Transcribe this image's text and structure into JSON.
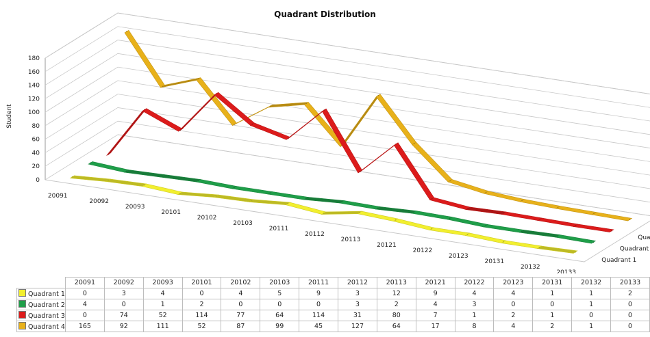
{
  "chart_data": {
    "type": "line",
    "view": "3d-ribbon",
    "title": "Quadrant Distribution",
    "ylabel": "Student",
    "ylim": [
      0,
      180
    ],
    "yticks": [
      "0",
      "20",
      "40",
      "60",
      "80",
      "100",
      "120",
      "140",
      "160",
      "180"
    ],
    "categories": [
      "20091",
      "20092",
      "20093",
      "20101",
      "20102",
      "20103",
      "20111",
      "20112",
      "20113",
      "20121",
      "20122",
      "20123",
      "20131",
      "20132",
      "20133"
    ],
    "series": [
      {
        "name": "Quadrant 1",
        "color": "#f2ef2e",
        "values": [
          0,
          3,
          4,
          0,
          4,
          5,
          9,
          3,
          12,
          9,
          4,
          4,
          1,
          1,
          2
        ]
      },
      {
        "name": "Quadrant 2",
        "color": "#1f9e49",
        "values": [
          4,
          0,
          1,
          2,
          0,
          0,
          0,
          3,
          2,
          4,
          3,
          0,
          0,
          1,
          0
        ]
      },
      {
        "name": "Quadrant 3",
        "color": "#dc1b1b",
        "values": [
          0,
          74,
          52,
          114,
          77,
          64,
          114,
          31,
          80,
          7,
          1,
          2,
          1,
          0,
          0
        ]
      },
      {
        "name": "Quadrant 4",
        "color": "#e8b11a",
        "values": [
          165,
          92,
          111,
          52,
          87,
          99,
          45,
          127,
          64,
          17,
          8,
          4,
          2,
          1,
          0
        ]
      }
    ],
    "grid": true,
    "data_table": true
  }
}
